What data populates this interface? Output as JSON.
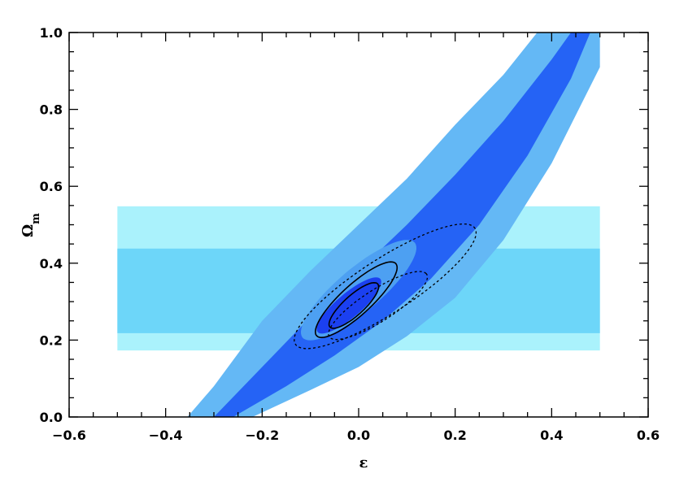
{
  "chart_data": {
    "type": "contour",
    "title": "",
    "xlabel": "ε",
    "ylabel": "Ω",
    "ylabel_sub": "m",
    "xlim": [
      -0.6,
      0.6
    ],
    "ylim": [
      0.0,
      1.0
    ],
    "xticks": [
      -0.6,
      -0.4,
      -0.2,
      0.0,
      0.2,
      0.4,
      0.6
    ],
    "xtick_labels": [
      "−0.6",
      "−0.4",
      "−0.2",
      "0.0",
      "0.2",
      "0.4",
      "0.6"
    ],
    "yticks": [
      0.0,
      0.2,
      0.4,
      0.6,
      0.8,
      1.0
    ],
    "ytick_labels": [
      "0.0",
      "0.2",
      "0.4",
      "0.6",
      "0.8",
      "1.0"
    ],
    "colors": {
      "prior_outer": "#aaf2fc",
      "prior_inner": "#6dd6f9",
      "band_outer": "#64b8f5",
      "band_inner": "#2563f5",
      "joint_outer": "#4da0f2",
      "joint_inner": "#1b40f0",
      "contour_line": "#000000"
    },
    "prior_bands": [
      {
        "level": "outer",
        "x_range": [
          -0.5,
          0.5
        ],
        "y_range": [
          0.173,
          0.548
        ]
      },
      {
        "level": "inner",
        "x_range": [
          -0.5,
          0.5
        ],
        "y_range": [
          0.218,
          0.438
        ]
      }
    ],
    "degeneracy_band": {
      "outer_left": [
        [
          -0.355,
          0.0
        ],
        [
          -0.3,
          0.08
        ],
        [
          -0.2,
          0.25
        ],
        [
          -0.1,
          0.38
        ],
        [
          0.0,
          0.5
        ],
        [
          0.1,
          0.62
        ],
        [
          0.2,
          0.76
        ],
        [
          0.3,
          0.89
        ],
        [
          0.37,
          1.0
        ]
      ],
      "outer_right": [
        [
          -0.22,
          0.0
        ],
        [
          -0.1,
          0.07
        ],
        [
          0.0,
          0.13
        ],
        [
          0.1,
          0.21
        ],
        [
          0.2,
          0.31
        ],
        [
          0.3,
          0.46
        ],
        [
          0.4,
          0.66
        ],
        [
          0.5,
          0.91
        ],
        [
          0.5,
          1.0
        ]
      ],
      "inner_left": [
        [
          -0.3,
          0.0
        ],
        [
          -0.2,
          0.13
        ],
        [
          -0.1,
          0.26
        ],
        [
          0.0,
          0.38
        ],
        [
          0.1,
          0.5
        ],
        [
          0.2,
          0.63
        ],
        [
          0.3,
          0.77
        ],
        [
          0.4,
          0.93
        ],
        [
          0.44,
          1.0
        ]
      ],
      "inner_right": [
        [
          -0.26,
          0.0
        ],
        [
          -0.15,
          0.08
        ],
        [
          -0.05,
          0.16
        ],
        [
          0.05,
          0.25
        ],
        [
          0.15,
          0.36
        ],
        [
          0.25,
          0.5
        ],
        [
          0.35,
          0.68
        ],
        [
          0.44,
          0.88
        ],
        [
          0.48,
          1.0
        ]
      ]
    },
    "joint_contours": [
      {
        "level": "outer",
        "center": [
          0.0,
          0.33
        ],
        "rx": 0.17,
        "ry": 0.05,
        "angle_deg": -48
      },
      {
        "level": "inner",
        "center": [
          -0.02,
          0.29
        ],
        "rx": 0.095,
        "ry": 0.028,
        "angle_deg": -48
      }
    ],
    "solid_contours": [
      {
        "level": "outer",
        "center": [
          -0.005,
          0.305
        ],
        "rx": 0.125,
        "ry": 0.035,
        "angle_deg": -50
      },
      {
        "level": "inner",
        "center": [
          -0.01,
          0.29
        ],
        "rx": 0.075,
        "ry": 0.023,
        "angle_deg": -50
      }
    ],
    "dashed_contours": [
      {
        "level": "outer",
        "center": [
          0.055,
          0.34
        ],
        "rx": 0.24,
        "ry": 0.065,
        "angle_deg": -40
      },
      {
        "level": "inner",
        "center": [
          0.04,
          0.29
        ],
        "rx": 0.13,
        "ry": 0.038,
        "angle_deg": -40
      }
    ]
  }
}
